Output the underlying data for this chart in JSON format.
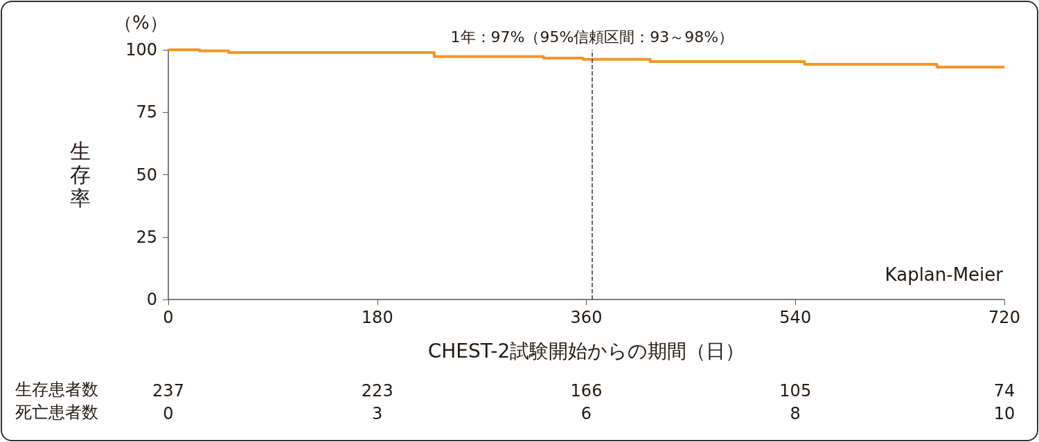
{
  "chart_data": {
    "type": "step",
    "xlabel": "CHEST-2試験開始からの期間（日）",
    "ylabel": "生存率",
    "xlim": [
      0,
      720
    ],
    "xticks": [
      0,
      180,
      360,
      540,
      720
    ],
    "ylim": [
      0,
      100
    ],
    "yticks": [
      0,
      25,
      50,
      75,
      100
    ],
    "grid": false,
    "marker": "none",
    "line_style": "solid",
    "series": [
      {
        "color": "#f39628",
        "x": [
          0,
          27,
          52,
          229,
          323,
          357,
          415,
          548,
          662,
          720
        ],
        "values": [
          100,
          99.6,
          98.9,
          97.3,
          96.7,
          96.2,
          95.3,
          94.2,
          93.1,
          93.1
        ]
      }
    ],
    "ref_lines": [
      {
        "axis": "x",
        "value": 365,
        "label": "1年：97%（95%信頼区間：93～98%）",
        "color": "#333333",
        "line_style": "dashed"
      }
    ],
    "annotations": [
      "（%）",
      "Kaplan-Meier",
      "生存患者数",
      "237",
      "223",
      "166",
      "105",
      "74",
      "死亡患者数",
      "0",
      "3",
      "6",
      "8",
      "10"
    ]
  }
}
